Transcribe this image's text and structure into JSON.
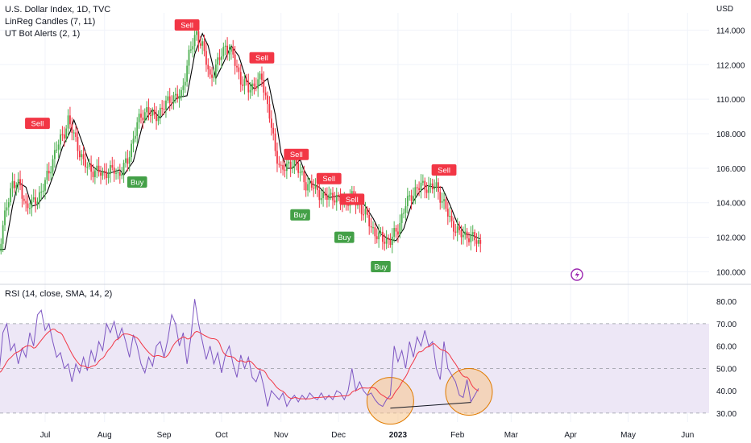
{
  "legends": {
    "title": "U.S. Dollar Index, 1D, TVC",
    "indicator1": "LinReg Candles (7, 11)",
    "indicator2": "UT Bot Alerts (2, 1)",
    "rsi": "RSI (14, close, SMA, 14, 2)"
  },
  "currency": "USD",
  "colors": {
    "up": "#4caf50",
    "down": "#f23645",
    "sell_bg": "#f23645",
    "buy_bg": "#43a047",
    "rsi_line": "#7e57c2",
    "rsi_ma": "#f23645",
    "rsi_band": "#ede7f6",
    "ma_line": "#000000",
    "circle_fill": "#f7c58a",
    "circle_stroke": "#e07b00"
  },
  "icon": "lightning-bolt-icon",
  "chart_data": [
    {
      "type": "candlestick",
      "y_axis": {
        "range": [
          99.6,
          115.0
        ],
        "ticks": [
          "114.000",
          "112.000",
          "110.000",
          "108.000",
          "106.000",
          "104.000",
          "102.000",
          "100.000"
        ],
        "tick_values": [
          114,
          112,
          110,
          108,
          106,
          104,
          102,
          100
        ]
      },
      "x_axis": {
        "ticks": [
          {
            "label": "Jul",
            "day": 0
          },
          {
            "label": "Aug",
            "day": 31
          },
          {
            "label": "Sep",
            "day": 62
          },
          {
            "label": "Oct",
            "day": 92
          },
          {
            "label": "Nov",
            "day": 123
          },
          {
            "label": "Dec",
            "day": 153
          },
          {
            "label": "2023",
            "day": 184
          },
          {
            "label": "Feb",
            "day": 215
          },
          {
            "label": "Mar",
            "day": 243
          },
          {
            "label": "Apr",
            "day": 274
          },
          {
            "label": "May",
            "day": 304
          },
          {
            "label": "Jun",
            "day": 335
          }
        ]
      },
      "anchors": [
        [
          -24,
          101.3
        ],
        [
          -20,
          103.8
        ],
        [
          -17,
          105.2
        ],
        [
          -13,
          104.9
        ],
        [
          -10,
          103.8
        ],
        [
          -7,
          103.9
        ],
        [
          -2,
          104.6
        ],
        [
          2,
          105.8
        ],
        [
          6,
          107.2
        ],
        [
          10,
          108.1
        ],
        [
          12,
          108.8
        ],
        [
          16,
          107.6
        ],
        [
          20,
          106.3
        ],
        [
          24,
          105.9
        ],
        [
          30,
          105.7
        ],
        [
          36,
          105.9
        ],
        [
          38,
          105.6
        ],
        [
          43,
          106.4
        ],
        [
          48,
          108.6
        ],
        [
          53,
          109.4
        ],
        [
          57,
          108.9
        ],
        [
          62,
          109.6
        ],
        [
          66,
          110.1
        ],
        [
          71,
          110.2
        ],
        [
          75,
          112.6
        ],
        [
          79,
          113.8
        ],
        [
          82,
          113.1
        ],
        [
          86,
          111.2
        ],
        [
          90,
          112.1
        ],
        [
          94,
          113.1
        ],
        [
          98,
          112.5
        ],
        [
          102,
          111.1
        ],
        [
          106,
          110.6
        ],
        [
          110,
          110.9
        ],
        [
          113,
          111.2
        ],
        [
          117,
          109.1
        ],
        [
          120,
          106.9
        ],
        [
          123,
          106.0
        ],
        [
          126,
          106.0
        ],
        [
          130,
          106.5
        ],
        [
          132,
          105.9
        ],
        [
          136,
          105.1
        ],
        [
          140,
          104.9
        ],
        [
          145,
          104.3
        ],
        [
          150,
          104.4
        ],
        [
          155,
          104.0
        ],
        [
          160,
          104.3
        ],
        [
          164,
          103.8
        ],
        [
          168,
          103.1
        ],
        [
          172,
          102.2
        ],
        [
          176,
          101.9
        ],
        [
          180,
          101.8
        ],
        [
          184,
          102.5
        ],
        [
          188,
          103.9
        ],
        [
          192,
          104.6
        ],
        [
          196,
          105.0
        ],
        [
          200,
          104.9
        ],
        [
          204,
          104.9
        ],
        [
          208,
          103.9
        ],
        [
          212,
          102.8
        ],
        [
          216,
          102.2
        ],
        [
          220,
          102.1
        ],
        [
          224,
          101.9
        ],
        [
          227,
          101.6
        ]
      ],
      "ma_offset_days": 3,
      "sell_labels": [
        {
          "label": "Sell",
          "day": -4,
          "value": 108.6
        },
        {
          "label": "Sell",
          "day": 74,
          "value": 114.3
        },
        {
          "label": "Sell",
          "day": 113,
          "value": 112.4
        },
        {
          "label": "Sell",
          "day": 131,
          "value": 106.8
        },
        {
          "label": "Sell",
          "day": 148,
          "value": 105.4
        },
        {
          "label": "Sell",
          "day": 160,
          "value": 104.2
        },
        {
          "label": "Sell",
          "day": 208,
          "value": 105.9
        }
      ],
      "buy_labels": [
        {
          "label": "Buy",
          "day": 48,
          "value": 105.2
        },
        {
          "label": "Buy",
          "day": 133,
          "value": 103.3
        },
        {
          "label": "Buy",
          "day": 156,
          "value": 102.0
        },
        {
          "label": "Buy",
          "day": 175,
          "value": 100.3
        }
      ]
    },
    {
      "type": "line",
      "name": "RSI",
      "y_axis": {
        "range": [
          26,
          84
        ],
        "ticks": [
          "80.00",
          "70.00",
          "60.00",
          "50.00",
          "40.00",
          "30.00"
        ],
        "tick_values": [
          80,
          70,
          60,
          50,
          40,
          30
        ]
      },
      "bands": {
        "upper": 70,
        "middle": 50,
        "lower": 30
      },
      "rsi_anchors": [
        [
          -24,
          48
        ],
        [
          -22,
          66
        ],
        [
          -20,
          70
        ],
        [
          -18,
          58
        ],
        [
          -16,
          61
        ],
        [
          -14,
          52
        ],
        [
          -12,
          59
        ],
        [
          -10,
          55
        ],
        [
          -8,
          66
        ],
        [
          -6,
          60
        ],
        [
          -4,
          74
        ],
        [
          -2,
          76
        ],
        [
          0,
          67
        ],
        [
          2,
          70
        ],
        [
          4,
          62
        ],
        [
          6,
          55
        ],
        [
          8,
          57
        ],
        [
          10,
          50
        ],
        [
          12,
          52
        ],
        [
          14,
          44
        ],
        [
          16,
          52
        ],
        [
          18,
          48
        ],
        [
          20,
          55
        ],
        [
          22,
          49
        ],
        [
          24,
          58
        ],
        [
          26,
          53
        ],
        [
          28,
          62
        ],
        [
          30,
          58
        ],
        [
          32,
          70
        ],
        [
          34,
          66
        ],
        [
          36,
          71
        ],
        [
          38,
          63
        ],
        [
          40,
          68
        ],
        [
          42,
          62
        ],
        [
          44,
          55
        ],
        [
          46,
          65
        ],
        [
          48,
          60
        ],
        [
          50,
          52
        ],
        [
          52,
          48
        ],
        [
          54,
          55
        ],
        [
          56,
          51
        ],
        [
          58,
          60
        ],
        [
          60,
          62
        ],
        [
          62,
          55
        ],
        [
          64,
          63
        ],
        [
          66,
          74
        ],
        [
          68,
          70
        ],
        [
          70,
          60
        ],
        [
          72,
          66
        ],
        [
          74,
          52
        ],
        [
          76,
          64
        ],
        [
          78,
          81
        ],
        [
          80,
          70
        ],
        [
          82,
          62
        ],
        [
          84,
          54
        ],
        [
          86,
          60
        ],
        [
          88,
          52
        ],
        [
          90,
          57
        ],
        [
          92,
          48
        ],
        [
          94,
          56
        ],
        [
          96,
          60
        ],
        [
          98,
          52
        ],
        [
          100,
          46
        ],
        [
          102,
          56
        ],
        [
          104,
          50
        ],
        [
          106,
          55
        ],
        [
          108,
          46
        ],
        [
          110,
          44
        ],
        [
          112,
          49
        ],
        [
          114,
          42
        ],
        [
          116,
          33
        ],
        [
          118,
          40
        ],
        [
          120,
          38
        ],
        [
          122,
          36
        ],
        [
          124,
          39
        ],
        [
          126,
          33
        ],
        [
          128,
          36
        ],
        [
          130,
          38
        ],
        [
          132,
          35
        ],
        [
          134,
          38
        ],
        [
          136,
          36
        ],
        [
          138,
          39
        ],
        [
          140,
          37
        ],
        [
          142,
          36
        ],
        [
          144,
          39
        ],
        [
          146,
          36
        ],
        [
          148,
          38
        ],
        [
          150,
          36
        ],
        [
          152,
          40
        ],
        [
          154,
          39
        ],
        [
          156,
          36
        ],
        [
          158,
          40
        ],
        [
          160,
          50
        ],
        [
          162,
          40
        ],
        [
          164,
          44
        ],
        [
          166,
          40
        ],
        [
          168,
          38
        ],
        [
          170,
          39
        ],
        [
          172,
          36
        ],
        [
          174,
          34
        ],
        [
          176,
          33
        ],
        [
          178,
          36
        ],
        [
          180,
          38
        ],
        [
          182,
          60
        ],
        [
          184,
          53
        ],
        [
          186,
          58
        ],
        [
          188,
          50
        ],
        [
          190,
          62
        ],
        [
          192,
          55
        ],
        [
          194,
          64
        ],
        [
          196,
          60
        ],
        [
          198,
          67
        ],
        [
          200,
          60
        ],
        [
          202,
          62
        ],
        [
          204,
          50
        ],
        [
          206,
          45
        ],
        [
          208,
          62
        ],
        [
          210,
          50
        ],
        [
          212,
          47
        ],
        [
          214,
          44
        ],
        [
          216,
          38
        ],
        [
          218,
          37
        ],
        [
          220,
          45
        ],
        [
          222,
          35
        ],
        [
          224,
          38
        ],
        [
          226,
          41
        ]
      ],
      "ma_window_days": 14,
      "circles": [
        {
          "day": 180,
          "value": 35.5
        },
        {
          "day": 221,
          "value": 39.5
        }
      ],
      "trendline": [
        [
          180,
          32.2
        ],
        [
          222,
          34.8
        ]
      ]
    }
  ]
}
